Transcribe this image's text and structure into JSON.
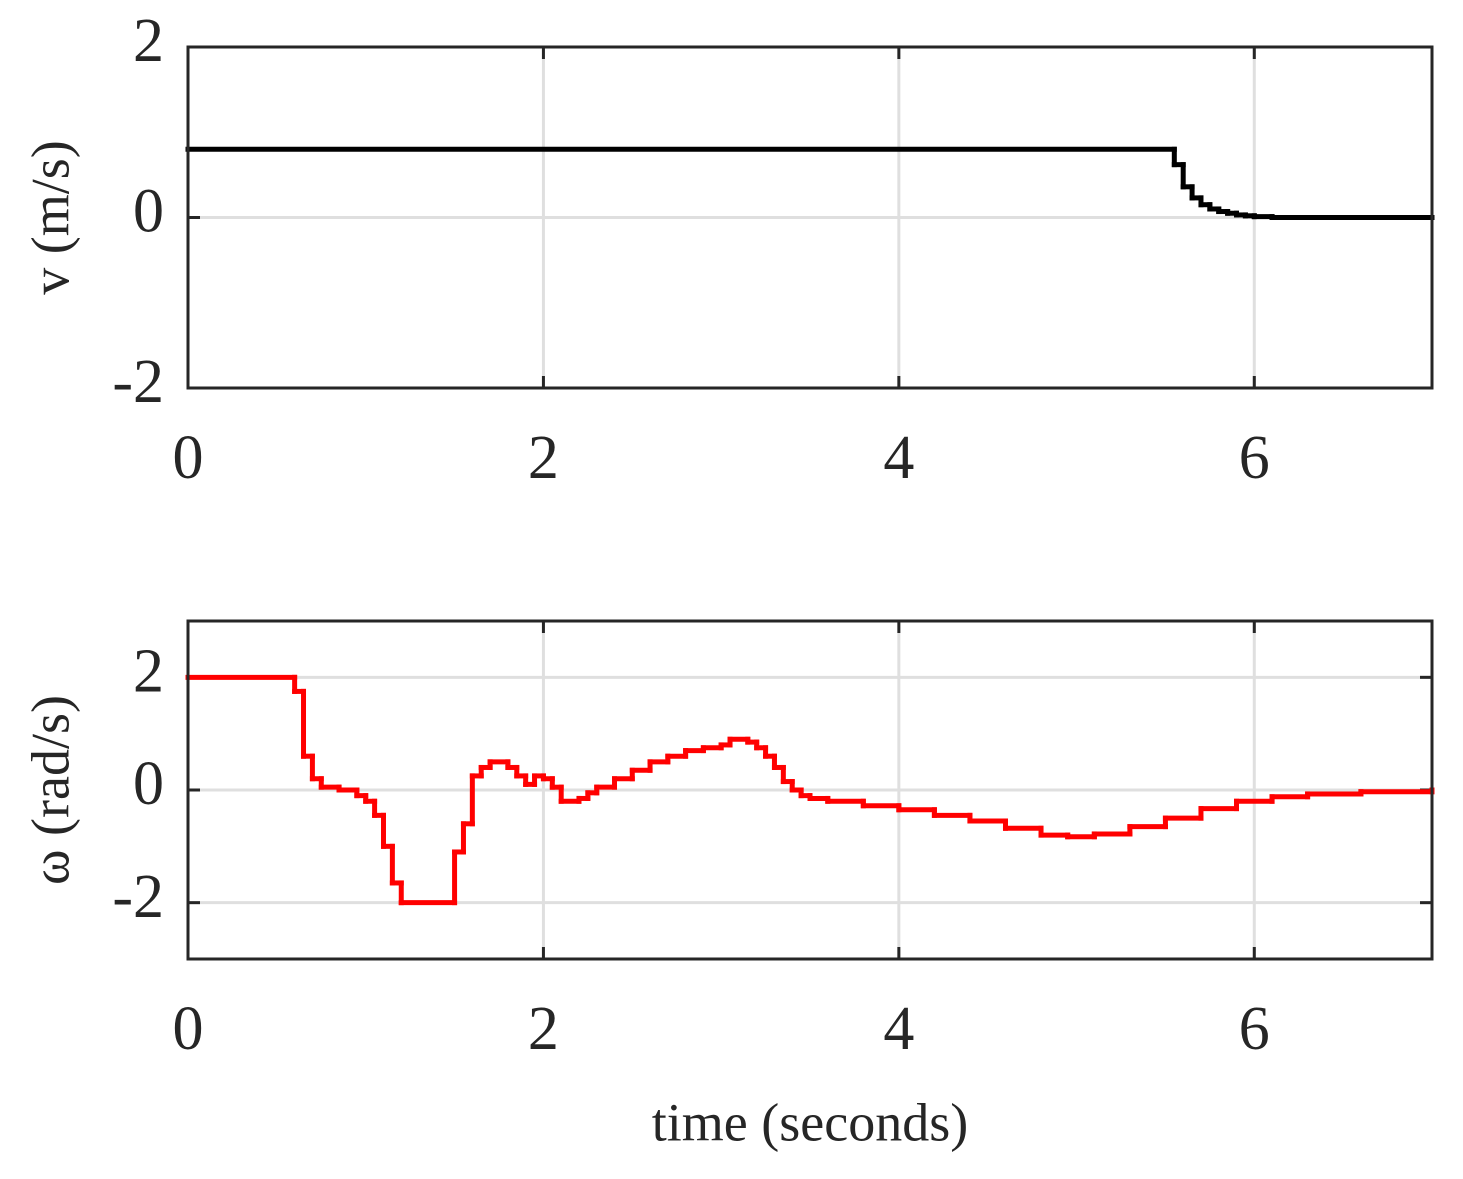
{
  "chart_data": [
    {
      "type": "line",
      "step": "post",
      "ylabel": "v (m/s)",
      "x": [
        0,
        5.55,
        5.6,
        5.65,
        5.7,
        5.75,
        5.8,
        5.85,
        5.9,
        5.95,
        6.0,
        6.1,
        7
      ],
      "series": [
        {
          "color": "#000000",
          "values": [
            0.8,
            0.62,
            0.36,
            0.23,
            0.15,
            0.1,
            0.07,
            0.05,
            0.03,
            0.02,
            0.01,
            0,
            0
          ]
        }
      ],
      "xlim": [
        0,
        7
      ],
      "xticks": [
        0,
        2,
        4,
        6
      ],
      "ylim": [
        -2,
        2
      ],
      "yticks": [
        -2,
        0,
        2
      ],
      "grid": true
    },
    {
      "type": "line",
      "step": "post",
      "ylabel": "ω (rad/s)",
      "xlabel": "time (seconds)",
      "x": [
        0,
        0.6,
        0.65,
        0.7,
        0.75,
        0.85,
        0.95,
        1.0,
        1.05,
        1.1,
        1.15,
        1.2,
        1.5,
        1.55,
        1.6,
        1.65,
        1.7,
        1.8,
        1.85,
        1.9,
        1.95,
        2.0,
        2.05,
        2.1,
        2.2,
        2.25,
        2.3,
        2.4,
        2.5,
        2.6,
        2.7,
        2.8,
        2.9,
        3.0,
        3.05,
        3.15,
        3.2,
        3.25,
        3.3,
        3.35,
        3.4,
        3.45,
        3.5,
        3.6,
        3.8,
        4.0,
        4.2,
        4.4,
        4.6,
        4.8,
        4.95,
        5.1,
        5.3,
        5.5,
        5.7,
        5.9,
        6.1,
        6.3,
        6.6,
        7
      ],
      "series": [
        {
          "color": "#ff0000",
          "values": [
            2,
            1.75,
            0.6,
            0.2,
            0.05,
            0,
            -0.1,
            -0.2,
            -0.45,
            -1,
            -1.65,
            -2,
            -1.1,
            -0.6,
            0.25,
            0.4,
            0.5,
            0.4,
            0.25,
            0.1,
            0.25,
            0.2,
            0.05,
            -0.2,
            -0.15,
            -0.05,
            0.05,
            0.2,
            0.35,
            0.5,
            0.6,
            0.7,
            0.75,
            0.8,
            0.9,
            0.85,
            0.75,
            0.6,
            0.4,
            0.15,
            0,
            -0.1,
            -0.15,
            -0.2,
            -0.28,
            -0.35,
            -0.45,
            -0.55,
            -0.68,
            -0.8,
            -0.83,
            -0.78,
            -0.65,
            -0.5,
            -0.33,
            -0.2,
            -0.12,
            -0.07,
            -0.03,
            0
          ]
        }
      ],
      "xlim": [
        0,
        7
      ],
      "xticks": [
        0,
        2,
        4,
        6
      ],
      "ylim": [
        -3,
        3
      ],
      "yticks": [
        -2,
        0,
        2
      ],
      "grid": true
    }
  ]
}
